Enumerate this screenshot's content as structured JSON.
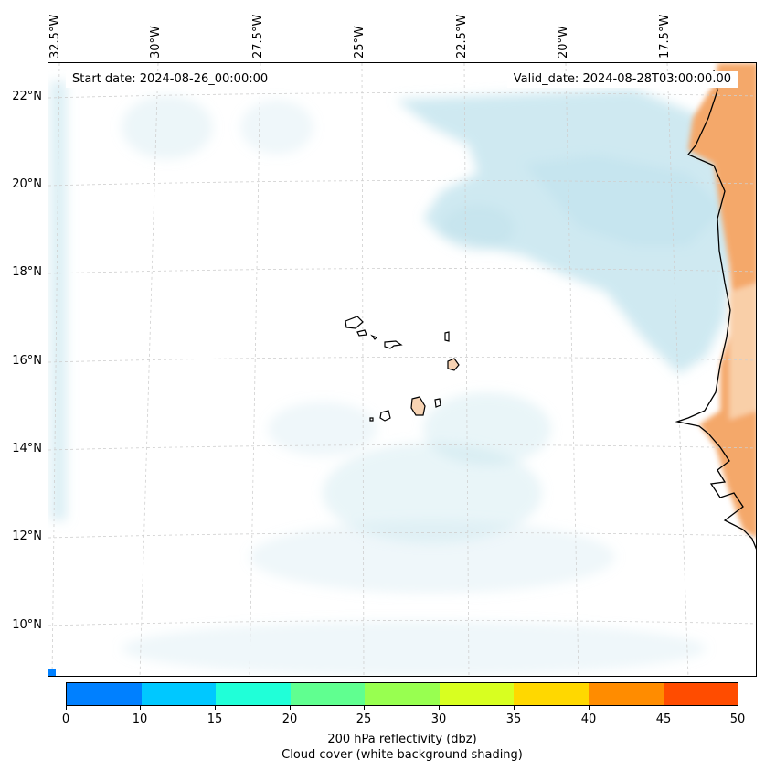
{
  "map": {
    "start_date": "Start date: 2024-08-26_00:00:00",
    "valid_date": "Valid_date: 2024-08-28T03:00:00.00",
    "lon_labels": [
      "32.5°W",
      "30°W",
      "27.5°W",
      "25°W",
      "22.5°W",
      "20°W",
      "17.5°W"
    ],
    "lat_labels": [
      "22°N",
      "20°N",
      "18°N",
      "16°N",
      "14°N",
      "12°N",
      "10°N"
    ],
    "features": [
      "Cabo Verde islands",
      "West African coastline"
    ]
  },
  "colorbar": {
    "ticks": [
      "0",
      "10",
      "15",
      "20",
      "25",
      "30",
      "35",
      "40",
      "45",
      "50"
    ],
    "colors": [
      "#0080ff",
      "#00c8ff",
      "#20ffd8",
      "#60ff90",
      "#98ff50",
      "#d8ff20",
      "#ffd800",
      "#ff8c00",
      "#ff4c00"
    ],
    "label_line1": "200 hPa reflectivity (dbz)",
    "label_line2": "Cloud cover (white background shading)"
  }
}
